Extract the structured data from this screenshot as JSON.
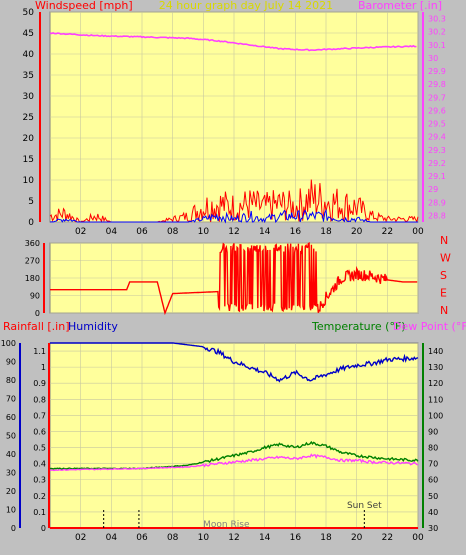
{
  "header": {
    "left_label": "Windspeed [mph]",
    "title": "24 hour graph day   July 14 2021",
    "right_label": "Barometer [.in]"
  },
  "colors": {
    "background": "#c0c0c0",
    "plot_bg": "#ffff9c",
    "wind_avg": "#0000ff",
    "wind_gust": "#ff0000",
    "barometer": "#ff40ff",
    "direction": "#ff0000",
    "rain": "#ff0000",
    "humidity": "#0000c8",
    "temperature": "#008000",
    "dewpoint": "#ff40ff",
    "title": "#d8d800"
  },
  "direction_labels": [
    "N",
    "W",
    "S",
    "E",
    "N"
  ],
  "bottom_header": {
    "rain_label": "Rainfall [.in]",
    "humidity_label": "Humidity",
    "temp_label": "Temperature (°F)",
    "dew_label": "Dew Point (°F)"
  },
  "annotations": {
    "moon_rise": "Moon Rise",
    "sun_set": "Sun Set"
  },
  "chart_data": [
    {
      "type": "line",
      "panel": "wind",
      "x_ticks": [
        "02",
        "04",
        "06",
        "08",
        "10",
        "12",
        "14",
        "16",
        "18",
        "20",
        "22",
        "00"
      ],
      "y_left_ticks": [
        "0",
        "5",
        "10",
        "15",
        "20",
        "25",
        "30",
        "35",
        "40",
        "45",
        "50"
      ],
      "y_left_range": [
        0,
        50
      ],
      "y_right_ticks": [
        "28.8",
        "28.9",
        "29",
        "29.1",
        "29.2",
        "29.3",
        "29.4",
        "29.5",
        "29.6",
        "29.7",
        "29.8",
        "29.9",
        "30",
        "30.1",
        "30.2",
        "30.3"
      ],
      "y_right_range": [
        28.75,
        30.35
      ],
      "series": [
        {
          "key": "gust",
          "values": [
            [
              0,
              2
            ],
            [
              1,
              3
            ],
            [
              2,
              0
            ],
            [
              3,
              2
            ],
            [
              4,
              0
            ],
            [
              5,
              0
            ],
            [
              6,
              0
            ],
            [
              7,
              0
            ],
            [
              8,
              1
            ],
            [
              9,
              2
            ],
            [
              10,
              5
            ],
            [
              11,
              6
            ],
            [
              12,
              5
            ],
            [
              13,
              6
            ],
            [
              14,
              5
            ],
            [
              15,
              6
            ],
            [
              16,
              5
            ],
            [
              17,
              8
            ],
            [
              18,
              7
            ],
            [
              19,
              6
            ],
            [
              20,
              5
            ],
            [
              21,
              2
            ],
            [
              22,
              1
            ],
            [
              24,
              1
            ]
          ]
        },
        {
          "key": "average",
          "values": [
            [
              0,
              0
            ],
            [
              1,
              1
            ],
            [
              2,
              0
            ],
            [
              3,
              0
            ],
            [
              4,
              0
            ],
            [
              5,
              0
            ],
            [
              6,
              0
            ],
            [
              7,
              0
            ],
            [
              8,
              0
            ],
            [
              9,
              0
            ],
            [
              10,
              1
            ],
            [
              11,
              2
            ],
            [
              12,
              1
            ],
            [
              13,
              2
            ],
            [
              14,
              1
            ],
            [
              15,
              2
            ],
            [
              16,
              2
            ],
            [
              17,
              2
            ],
            [
              18,
              2
            ],
            [
              19,
              1
            ],
            [
              20,
              1
            ],
            [
              21,
              0
            ],
            [
              22,
              0
            ],
            [
              24,
              0
            ]
          ]
        },
        {
          "key": "barometer",
          "axis": "right",
          "values": [
            [
              0,
              30.19
            ],
            [
              3,
              30.17
            ],
            [
              6,
              30.16
            ],
            [
              9,
              30.15
            ],
            [
              11,
              30.13
            ],
            [
              13,
              30.1
            ],
            [
              15,
              30.07
            ],
            [
              17,
              30.06
            ],
            [
              19,
              30.07
            ],
            [
              21,
              30.08
            ],
            [
              24,
              30.09
            ]
          ]
        }
      ]
    },
    {
      "type": "line",
      "panel": "direction",
      "y_ticks": [
        "0",
        "90",
        "180",
        "270",
        "360"
      ],
      "y_range": [
        0,
        360
      ],
      "series": [
        {
          "key": "direction",
          "values": [
            [
              0,
              120
            ],
            [
              1,
              120
            ],
            [
              3,
              120
            ],
            [
              5,
              120
            ],
            [
              5.2,
              160
            ],
            [
              7,
              160
            ],
            [
              7.5,
              0
            ],
            [
              8,
              100
            ],
            [
              11,
              110
            ],
            [
              11.5,
              340
            ],
            [
              12,
              30
            ],
            [
              13,
              340
            ],
            [
              14,
              20
            ],
            [
              15,
              350
            ],
            [
              16,
              30
            ],
            [
              17,
              340
            ],
            [
              17.5,
              20
            ],
            [
              18,
              80
            ],
            [
              19,
              180
            ],
            [
              20,
              200
            ],
            [
              21,
              190
            ],
            [
              22,
              170
            ],
            [
              23,
              160
            ],
            [
              24,
              160
            ]
          ]
        }
      ]
    },
    {
      "type": "line",
      "panel": "temperature",
      "y_rain_ticks": [
        "0",
        "0.1",
        "0.2",
        "0.3",
        "0.4",
        "0.5",
        "0.6",
        "0.7",
        "0.8",
        "0.9",
        "1",
        "1.1"
      ],
      "y_rain_range": [
        0,
        1.15
      ],
      "y_hum_ticks": [
        "0",
        "10",
        "20",
        "30",
        "40",
        "50",
        "60",
        "70",
        "80",
        "90",
        "100"
      ],
      "y_hum_range": [
        0,
        100
      ],
      "y_temp_ticks": [
        "30",
        "40",
        "50",
        "60",
        "70",
        "80",
        "90",
        "100",
        "110",
        "120",
        "130",
        "140"
      ],
      "y_temp_range": [
        30,
        145
      ],
      "series": [
        {
          "key": "humidity",
          "axis": "hum",
          "values": [
            [
              0,
              100
            ],
            [
              8,
              100
            ],
            [
              10,
              98
            ],
            [
              11,
              95
            ],
            [
              12,
              90
            ],
            [
              13,
              87
            ],
            [
              14,
              84
            ],
            [
              15,
              80
            ],
            [
              16,
              84
            ],
            [
              17,
              80
            ],
            [
              18,
              83
            ],
            [
              19,
              86
            ],
            [
              20,
              88
            ],
            [
              21,
              89
            ],
            [
              22,
              91
            ],
            [
              24,
              92
            ]
          ]
        },
        {
          "key": "temperature",
          "axis": "temp",
          "values": [
            [
              0,
              67
            ],
            [
              6,
              67
            ],
            [
              9,
              69
            ],
            [
              11,
              73
            ],
            [
              13,
              77
            ],
            [
              14,
              80
            ],
            [
              15,
              82
            ],
            [
              16,
              80
            ],
            [
              17,
              83
            ],
            [
              18,
              81
            ],
            [
              19,
              77
            ],
            [
              20,
              75
            ],
            [
              21,
              74
            ],
            [
              22,
              73
            ],
            [
              24,
              72
            ]
          ]
        },
        {
          "key": "dewpoint",
          "axis": "temp",
          "values": [
            [
              0,
              66
            ],
            [
              6,
              67
            ],
            [
              9,
              68
            ],
            [
              11,
              70
            ],
            [
              13,
              72
            ],
            [
              14,
              73
            ],
            [
              15,
              74
            ],
            [
              16,
              73
            ],
            [
              17,
              75
            ],
            [
              18,
              74
            ],
            [
              19,
              72
            ],
            [
              20,
              72
            ],
            [
              21,
              71
            ],
            [
              24,
              70
            ]
          ]
        },
        {
          "key": "rain",
          "axis": "rain",
          "values": [
            [
              0,
              0
            ],
            [
              24,
              0
            ]
          ]
        }
      ]
    }
  ]
}
